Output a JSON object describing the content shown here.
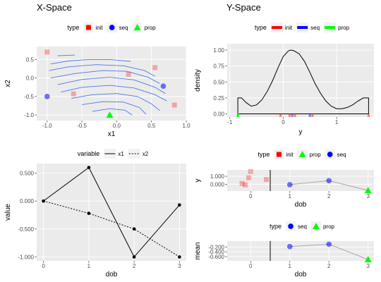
{
  "titles": {
    "left": "X-Space",
    "right": "Y-Space"
  },
  "colors": {
    "panel_bg": "#ebebeb",
    "grid": "#ffffff",
    "init": "#ff0000",
    "seq": "#0000ff",
    "prop": "#00ff00",
    "contour": "#4a78e8",
    "line": "#000000",
    "mean_line": "#aaaaaa"
  },
  "chart_data": [
    {
      "id": "xspace",
      "type": "scatter",
      "title": "",
      "xlabel": "x1",
      "ylabel": "x2",
      "xlim": [
        -1.15,
        1.0
      ],
      "ylim": [
        -1.15,
        0.85
      ],
      "xticks": [
        -1.0,
        -0.5,
        0.0,
        0.5,
        1.0
      ],
      "xtick_labels": [
        "-1.0",
        "-0.5",
        "0.0",
        "0.5",
        "1.0"
      ],
      "yticks": [
        -1.0,
        -0.5,
        0.0,
        0.5
      ],
      "ytick_labels": [
        "-1.0",
        "-0.5",
        "0.0",
        "0.5"
      ],
      "legend": {
        "title": "type",
        "position": "top",
        "entries": [
          "init",
          "seq",
          "prop"
        ]
      },
      "points": [
        {
          "type": "init",
          "x": -1.0,
          "y": 0.7
        },
        {
          "type": "init",
          "x": 0.17,
          "y": 0.1
        },
        {
          "type": "init",
          "x": 0.55,
          "y": 0.28
        },
        {
          "type": "init",
          "x": -0.62,
          "y": -0.43
        },
        {
          "type": "init",
          "x": 0.83,
          "y": -0.73
        },
        {
          "type": "seq",
          "x": -1.0,
          "y": -0.5
        },
        {
          "type": "seq",
          "x": 0.67,
          "y": -0.22
        },
        {
          "type": "prop",
          "x": -0.1,
          "y": -1.0
        }
      ],
      "contours": [
        [
          [
            -0.85,
            0.6
          ],
          [
            -0.6,
            0.62
          ]
        ],
        [
          [
            -0.95,
            0.38
          ],
          [
            -0.7,
            0.46
          ],
          [
            -0.4,
            0.5
          ],
          [
            -0.1,
            0.5
          ],
          [
            0.2,
            0.45
          ]
        ],
        [
          [
            -0.97,
            0.2
          ],
          [
            -0.7,
            0.3
          ],
          [
            -0.3,
            0.36
          ],
          [
            0.1,
            0.33
          ],
          [
            0.4,
            0.2
          ],
          [
            0.55,
            0.05
          ]
        ],
        [
          [
            -0.95,
            0.0
          ],
          [
            -0.6,
            0.12
          ],
          [
            -0.2,
            0.2
          ],
          [
            0.15,
            0.18
          ],
          [
            0.45,
            0.02
          ],
          [
            0.62,
            -0.15
          ]
        ],
        [
          [
            -0.85,
            -0.18
          ],
          [
            -0.5,
            -0.04
          ],
          [
            -0.1,
            0.02
          ],
          [
            0.25,
            -0.05
          ],
          [
            0.55,
            -0.25
          ],
          [
            0.7,
            -0.42
          ]
        ],
        [
          [
            -0.8,
            -0.38
          ],
          [
            -0.5,
            -0.25
          ],
          [
            -0.1,
            -0.2
          ],
          [
            0.25,
            -0.27
          ],
          [
            0.55,
            -0.45
          ],
          [
            0.72,
            -0.62
          ]
        ],
        [
          [
            -0.65,
            -0.55
          ],
          [
            -0.35,
            -0.45
          ],
          [
            0.0,
            -0.42
          ],
          [
            0.3,
            -0.5
          ],
          [
            0.5,
            -0.7
          ],
          [
            0.62,
            -0.88
          ]
        ],
        [
          [
            -0.5,
            -0.72
          ],
          [
            -0.2,
            -0.64
          ],
          [
            0.1,
            -0.65
          ],
          [
            0.33,
            -0.8
          ],
          [
            0.42,
            -0.98
          ]
        ],
        [
          [
            -0.35,
            -0.9
          ],
          [
            -0.1,
            -0.83
          ],
          [
            0.12,
            -0.87
          ],
          [
            0.22,
            -1.0
          ]
        ]
      ]
    },
    {
      "id": "yspace_density",
      "type": "line",
      "title": "",
      "xlabel": "y",
      "ylabel": "density",
      "xlim": [
        -1.05,
        1.7
      ],
      "ylim": [
        -0.05,
        1.1
      ],
      "xticks": [
        -1,
        0,
        1
      ],
      "xtick_labels": [
        "-1",
        "0",
        "1"
      ],
      "yticks": [
        0.0,
        0.25,
        0.5,
        0.75,
        1.0
      ],
      "ytick_labels": [
        "0.00",
        "0.25",
        "0.50",
        "0.75",
        "1.00"
      ],
      "legend": {
        "title": "type",
        "position": "top",
        "entries": [
          "init",
          "seq",
          "prop"
        ]
      },
      "density": [
        [
          -0.85,
          0.0
        ],
        [
          -0.85,
          0.25
        ],
        [
          -0.78,
          0.25
        ],
        [
          -0.7,
          0.18
        ],
        [
          -0.6,
          0.12
        ],
        [
          -0.5,
          0.14
        ],
        [
          -0.4,
          0.22
        ],
        [
          -0.3,
          0.35
        ],
        [
          -0.2,
          0.52
        ],
        [
          -0.1,
          0.72
        ],
        [
          0.0,
          0.9
        ],
        [
          0.1,
          0.99
        ],
        [
          0.15,
          1.0
        ],
        [
          0.2,
          0.99
        ],
        [
          0.3,
          0.94
        ],
        [
          0.4,
          0.82
        ],
        [
          0.5,
          0.65
        ],
        [
          0.6,
          0.47
        ],
        [
          0.7,
          0.32
        ],
        [
          0.8,
          0.2
        ],
        [
          0.9,
          0.12
        ],
        [
          1.0,
          0.08
        ],
        [
          1.1,
          0.08
        ],
        [
          1.2,
          0.1
        ],
        [
          1.3,
          0.14
        ],
        [
          1.4,
          0.2
        ],
        [
          1.5,
          0.25
        ],
        [
          1.6,
          0.25
        ],
        [
          1.6,
          0.0
        ],
        [
          -0.85,
          0.0
        ]
      ],
      "rug": [
        {
          "type": "prop",
          "x": -0.85
        },
        {
          "type": "init",
          "x": -0.05
        },
        {
          "type": "init",
          "x": 0.12
        },
        {
          "type": "seq",
          "x": 0.17
        },
        {
          "type": "init",
          "x": 0.22
        },
        {
          "type": "seq",
          "x": 0.5
        },
        {
          "type": "init",
          "x": 0.55
        },
        {
          "type": "init",
          "x": 1.6
        }
      ]
    },
    {
      "id": "value_dob",
      "type": "line",
      "title": "",
      "xlabel": "dob",
      "ylabel": "value",
      "xlim": [
        -0.15,
        3.15
      ],
      "ylim": [
        -1.07,
        0.67
      ],
      "xticks": [
        0,
        1,
        2,
        3
      ],
      "xtick_labels": [
        "0",
        "1",
        "2",
        "3"
      ],
      "yticks": [
        0.5,
        0.0,
        -0.5,
        -1.0
      ],
      "ytick_labels": [
        "0.500",
        "0.000",
        "-0.500",
        "-1.000"
      ],
      "legend": {
        "title": "variable",
        "position": "top",
        "entries": [
          "x1",
          "x2"
        ]
      },
      "series": [
        {
          "name": "x1",
          "x": [
            0,
            1,
            2,
            3
          ],
          "values": [
            0.0,
            0.6,
            -1.0,
            -0.07
          ]
        },
        {
          "name": "x2",
          "x": [
            0,
            1,
            2,
            3
          ],
          "values": [
            0.0,
            -0.22,
            -0.5,
            -1.0
          ]
        }
      ]
    },
    {
      "id": "y_dob",
      "type": "scatter",
      "title": "",
      "xlabel": "dob",
      "ylabel": "y",
      "xlim": [
        -0.6,
        3.15
      ],
      "ylim": [
        -0.85,
        1.8
      ],
      "xticks": [
        0,
        1,
        2,
        3
      ],
      "xtick_labels": [
        "0",
        "1",
        "2",
        "3"
      ],
      "yticks": [
        1.0,
        0.0
      ],
      "ytick_labels": [
        "1.000",
        "0.000"
      ],
      "vline_x": 0.5,
      "legend": {
        "title": "type",
        "position": "top",
        "entries": [
          "init",
          "prop",
          "seq"
        ]
      },
      "points": [
        {
          "type": "init",
          "x": 0.0,
          "y": 1.6
        },
        {
          "type": "init",
          "x": -0.05,
          "y": 0.82
        },
        {
          "type": "init",
          "x": -0.22,
          "y": 0.1
        },
        {
          "type": "init",
          "x": -0.14,
          "y": -0.07
        },
        {
          "type": "init",
          "x": 0.4,
          "y": 0.6
        },
        {
          "type": "seq",
          "x": 1.0,
          "y": -0.05
        },
        {
          "type": "seq",
          "x": 2.0,
          "y": 0.45
        },
        {
          "type": "prop",
          "x": 3.0,
          "y": -0.77
        }
      ],
      "path": {
        "x": [
          1,
          2,
          3
        ],
        "y": [
          -0.05,
          0.45,
          -0.77
        ]
      }
    },
    {
      "id": "mean_dob",
      "type": "scatter",
      "title": "",
      "xlabel": "dob",
      "ylabel": "mean",
      "xlim": [
        -0.6,
        3.15
      ],
      "ylim": [
        -0.78,
        0.05
      ],
      "xticks": [
        0,
        1,
        2,
        3
      ],
      "xtick_labels": [
        "0",
        "1",
        "2",
        "3"
      ],
      "yticks": [
        -0.2,
        -0.4,
        -0.6
      ],
      "ytick_labels": [
        "-0.200",
        "-0.400",
        "-0.600"
      ],
      "vline_x": 0.5,
      "legend": {
        "title": "type",
        "position": "top",
        "entries": [
          "seq",
          "prop"
        ]
      },
      "points": [
        {
          "type": "seq",
          "x": 1.0,
          "y": -0.18
        },
        {
          "type": "seq",
          "x": 2.0,
          "y": -0.08
        },
        {
          "type": "prop",
          "x": 3.0,
          "y": -0.72
        }
      ],
      "path": {
        "x": [
          1,
          2,
          3
        ],
        "y": [
          -0.18,
          -0.08,
          -0.72
        ]
      }
    }
  ]
}
